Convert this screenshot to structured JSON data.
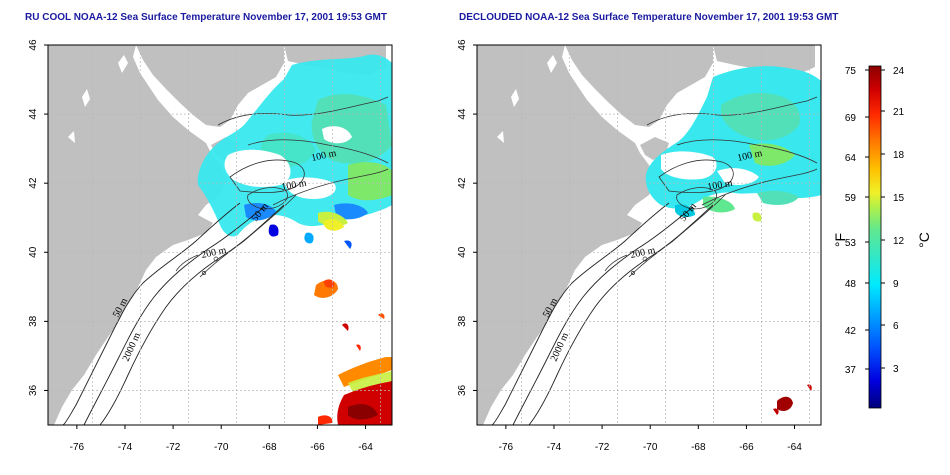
{
  "panels": [
    {
      "id": "left",
      "title": "RU COOL NOAA-12 Sea Surface Temperature November 17, 2001 19:53 GMT"
    },
    {
      "id": "right",
      "title": "DECLOUDED NOAA-12 Sea Surface Temperature November 17, 2001 19:53 GMT"
    }
  ],
  "axes": {
    "x_ticks": [
      -76,
      -74,
      -72,
      -70,
      -68,
      -66,
      -64
    ],
    "y_ticks": [
      36,
      38,
      40,
      42,
      44,
      46
    ],
    "x_range": [
      -77.2,
      -62.9
    ],
    "y_range": [
      35.0,
      46.0
    ]
  },
  "contour_labels": {
    "left": [
      "100 m",
      "100 m",
      "50 m",
      "200 m",
      "50 m",
      "2000 m"
    ],
    "right": [
      "100 m",
      "100 m",
      "50 m",
      "200 m",
      "50 m",
      "2000 m"
    ]
  },
  "colorbar": {
    "units_f": "°F",
    "units_c": "°C",
    "f_ticks": [
      "75",
      "69",
      "64",
      "59",
      "53",
      "48",
      "42",
      "37"
    ],
    "c_ticks": [
      "24",
      "21",
      "18",
      "15",
      "12",
      "9",
      "6",
      "3"
    ],
    "colors": [
      "#00007a",
      "#0000e0",
      "#0055ff",
      "#00a8ff",
      "#00eaff",
      "#30e8c8",
      "#60e890",
      "#a8f050",
      "#f0f028",
      "#ffc000",
      "#ff7800",
      "#ff2800",
      "#d00000",
      "#8a0000"
    ]
  }
}
